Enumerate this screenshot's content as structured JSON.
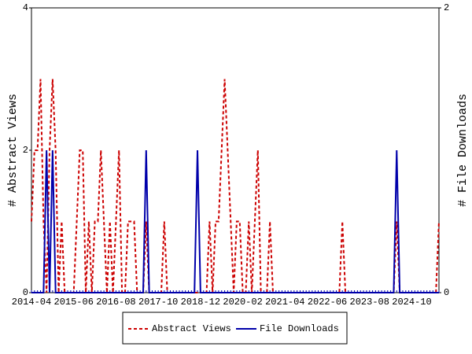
{
  "chart_data": {
    "type": "line",
    "categories": [
      "2014-04",
      null,
      null,
      null,
      null,
      null,
      null,
      null,
      null,
      null,
      null,
      null,
      null,
      null,
      "2015-06",
      null,
      null,
      null,
      null,
      null,
      null,
      null,
      null,
      null,
      null,
      null,
      null,
      null,
      "2016-08",
      null,
      null,
      null,
      null,
      null,
      null,
      null,
      null,
      null,
      null,
      null,
      null,
      null,
      "2017-10",
      null,
      null,
      null,
      null,
      null,
      null,
      null,
      null,
      null,
      null,
      null,
      null,
      null,
      "2018-12",
      null,
      null,
      null,
      null,
      null,
      null,
      null,
      null,
      null,
      null,
      null,
      null,
      null,
      "2020-02",
      null,
      null,
      null,
      null,
      null,
      null,
      null,
      null,
      null,
      null,
      null,
      null,
      null,
      "2021-04",
      null,
      null,
      null,
      null,
      null,
      null,
      null,
      null,
      null,
      null,
      null,
      null,
      null,
      "2022-06",
      null,
      null,
      null,
      null,
      null,
      null,
      null,
      null,
      null,
      null,
      null,
      null,
      null,
      "2023-08",
      null,
      null,
      null,
      null,
      null,
      null,
      null,
      null,
      null,
      null,
      null,
      null,
      null,
      "2024-10",
      null,
      null,
      null,
      null,
      null,
      null,
      null,
      null,
      null
    ],
    "y_label": "# Abstract Views",
    "y2_label": "# File Downloads",
    "ylim": [
      0,
      4
    ],
    "yticks": [
      0,
      2,
      4
    ],
    "y2lim": [
      0,
      2
    ],
    "y2ticks": [
      0,
      2
    ],
    "legend": "bottom",
    "series": [
      {
        "name": "Abstract Views",
        "color": "#cc0000",
        "dash": true,
        "values": [
          1,
          2,
          2,
          3,
          1,
          0,
          2,
          3,
          2,
          0,
          1,
          0,
          0,
          0,
          0,
          1,
          2,
          2,
          0,
          1,
          0,
          1,
          1,
          2,
          1,
          0,
          1,
          0,
          1,
          2,
          0,
          0,
          1,
          1,
          1,
          0,
          0,
          0,
          1,
          0,
          0,
          0,
          0,
          0,
          1,
          0,
          0,
          0,
          0,
          0,
          0,
          0,
          0,
          0,
          0,
          0,
          0,
          0,
          0,
          1,
          0,
          1,
          1,
          2,
          3,
          2,
          1,
          0,
          1,
          1,
          0,
          0,
          1,
          0,
          1,
          2,
          0,
          0,
          0,
          1,
          0,
          0,
          0,
          0,
          0,
          0,
          0,
          0,
          0,
          0,
          0,
          0,
          0,
          0,
          0,
          0,
          0,
          0,
          0,
          0,
          0,
          0,
          0,
          1,
          0,
          0,
          0,
          0,
          0,
          0,
          0,
          0,
          0,
          0,
          0,
          0,
          0,
          0,
          0,
          0,
          0,
          1,
          0,
          0,
          0,
          0,
          0,
          0,
          0,
          0,
          0,
          0,
          0,
          0,
          0,
          1
        ]
      },
      {
        "name": "File Downloads",
        "color": "#0000aa",
        "axis": "y2",
        "dash": false,
        "values": [
          0,
          0,
          0,
          0,
          0,
          1,
          0,
          1,
          0,
          0,
          0,
          0,
          0,
          0,
          0,
          0,
          0,
          0,
          0,
          0,
          0,
          0,
          0,
          0,
          0,
          0,
          0,
          0,
          0,
          0,
          0,
          0,
          0,
          0,
          0,
          0,
          0,
          0,
          1,
          0,
          0,
          0,
          0,
          0,
          0,
          0,
          0,
          0,
          0,
          0,
          0,
          0,
          0,
          0,
          0,
          1,
          0,
          0,
          0,
          0,
          0,
          0,
          0,
          0,
          0,
          0,
          0,
          0,
          0,
          0,
          0,
          0,
          0,
          0,
          0,
          0,
          0,
          0,
          0,
          0,
          0,
          0,
          0,
          0,
          0,
          0,
          0,
          0,
          0,
          0,
          0,
          0,
          0,
          0,
          0,
          0,
          0,
          0,
          0,
          0,
          0,
          0,
          0,
          0,
          0,
          0,
          0,
          0,
          0,
          0,
          0,
          0,
          0,
          0,
          0,
          0,
          0,
          0,
          0,
          0,
          0,
          1,
          0,
          0,
          0,
          0,
          0,
          0,
          0,
          0,
          0,
          0,
          0,
          0,
          0,
          0
        ]
      }
    ]
  }
}
